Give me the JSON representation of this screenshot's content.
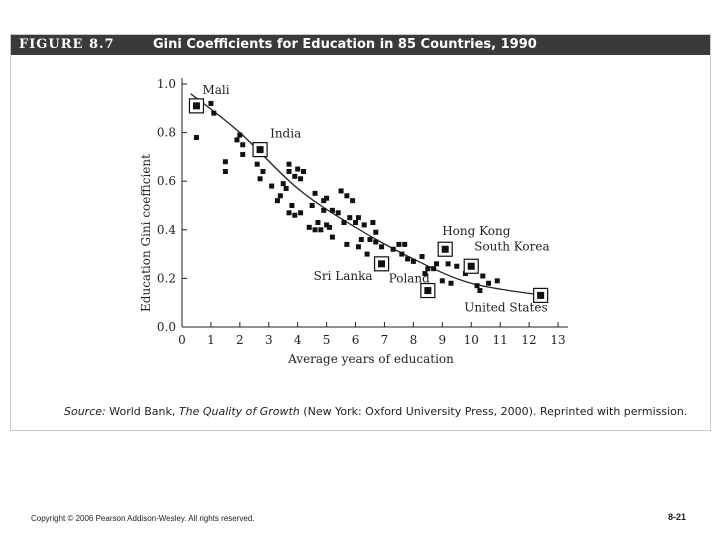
{
  "figure": {
    "label": "FIGURE 8.7",
    "title": "Gini Coefficients for Education in 85 Countries, 1990"
  },
  "chart_data": {
    "type": "scatter",
    "title": "Gini Coefficients for Education in 85 Countries, 1990",
    "xlabel": "Average years of education",
    "ylabel": "Education Gini coefficient",
    "xlim": [
      0,
      13
    ],
    "ylim": [
      0,
      1.0
    ],
    "x_ticks": [
      "0",
      "1",
      "2",
      "3",
      "4",
      "5",
      "6",
      "7",
      "8",
      "9",
      "10",
      "11",
      "12",
      "13"
    ],
    "y_ticks": [
      "0.0",
      "0.2",
      "0.4",
      "0.6",
      "0.8",
      "1.0"
    ],
    "grid": false,
    "trend_line": {
      "type": "curve",
      "points": [
        [
          0.3,
          0.96
        ],
        [
          2,
          0.8
        ],
        [
          4,
          0.57
        ],
        [
          6,
          0.41
        ],
        [
          8,
          0.28
        ],
        [
          10,
          0.18
        ],
        [
          12.5,
          0.13
        ]
      ]
    },
    "highlighted": [
      {
        "name": "Mali",
        "x": 0.5,
        "y": 0.91
      },
      {
        "name": "India",
        "x": 2.7,
        "y": 0.73
      },
      {
        "name": "Sri Lanka",
        "x": 6.9,
        "y": 0.26
      },
      {
        "name": "Poland",
        "x": 8.5,
        "y": 0.15
      },
      {
        "name": "Hong Kong",
        "x": 9.1,
        "y": 0.32
      },
      {
        "name": "South Korea",
        "x": 10.0,
        "y": 0.25
      },
      {
        "name": "United States",
        "x": 12.4,
        "y": 0.13
      }
    ],
    "points": [
      [
        0.5,
        0.78
      ],
      [
        1.0,
        0.92
      ],
      [
        1.1,
        0.88
      ],
      [
        1.5,
        0.68
      ],
      [
        1.5,
        0.64
      ],
      [
        1.9,
        0.77
      ],
      [
        2.0,
        0.79
      ],
      [
        2.1,
        0.71
      ],
      [
        2.1,
        0.75
      ],
      [
        2.6,
        0.67
      ],
      [
        2.7,
        0.61
      ],
      [
        2.8,
        0.64
      ],
      [
        3.1,
        0.58
      ],
      [
        3.3,
        0.52
      ],
      [
        3.4,
        0.54
      ],
      [
        3.5,
        0.59
      ],
      [
        3.6,
        0.57
      ],
      [
        3.7,
        0.64
      ],
      [
        3.7,
        0.67
      ],
      [
        3.7,
        0.47
      ],
      [
        3.8,
        0.5
      ],
      [
        3.9,
        0.46
      ],
      [
        3.9,
        0.62
      ],
      [
        4.0,
        0.65
      ],
      [
        4.1,
        0.47
      ],
      [
        4.1,
        0.61
      ],
      [
        4.2,
        0.64
      ],
      [
        4.4,
        0.41
      ],
      [
        4.5,
        0.5
      ],
      [
        4.6,
        0.55
      ],
      [
        4.6,
        0.4
      ],
      [
        4.7,
        0.43
      ],
      [
        4.8,
        0.4
      ],
      [
        4.9,
        0.52
      ],
      [
        4.9,
        0.48
      ],
      [
        5.0,
        0.53
      ],
      [
        5.0,
        0.42
      ],
      [
        5.1,
        0.41
      ],
      [
        5.2,
        0.48
      ],
      [
        5.2,
        0.37
      ],
      [
        5.4,
        0.47
      ],
      [
        5.5,
        0.56
      ],
      [
        5.6,
        0.43
      ],
      [
        5.7,
        0.34
      ],
      [
        5.7,
        0.54
      ],
      [
        5.8,
        0.45
      ],
      [
        5.9,
        0.52
      ],
      [
        6.0,
        0.43
      ],
      [
        6.1,
        0.33
      ],
      [
        6.1,
        0.45
      ],
      [
        6.2,
        0.36
      ],
      [
        6.3,
        0.42
      ],
      [
        6.4,
        0.3
      ],
      [
        6.5,
        0.36
      ],
      [
        6.6,
        0.43
      ],
      [
        6.7,
        0.35
      ],
      [
        6.7,
        0.39
      ],
      [
        6.9,
        0.33
      ],
      [
        7.3,
        0.32
      ],
      [
        7.5,
        0.34
      ],
      [
        7.6,
        0.3
      ],
      [
        7.7,
        0.34
      ],
      [
        7.8,
        0.28
      ],
      [
        8.0,
        0.27
      ],
      [
        8.3,
        0.29
      ],
      [
        8.4,
        0.22
      ],
      [
        8.5,
        0.24
      ],
      [
        8.7,
        0.24
      ],
      [
        8.8,
        0.26
      ],
      [
        9.0,
        0.19
      ],
      [
        9.2,
        0.26
      ],
      [
        9.3,
        0.18
      ],
      [
        9.5,
        0.25
      ],
      [
        9.8,
        0.22
      ],
      [
        10.2,
        0.17
      ],
      [
        10.3,
        0.15
      ],
      [
        10.4,
        0.21
      ],
      [
        10.6,
        0.18
      ],
      [
        10.9,
        0.19
      ]
    ]
  },
  "source": {
    "prefix": "Source:",
    "body1": " World Bank, ",
    "book": "The Quality of Growth",
    "body2": " (New York: Oxford University Press, 2000). Reprinted with permission."
  },
  "footer": {
    "copyright": "Copyright © 2006 Pearson Addison-Wesley. All rights reserved.",
    "slide_number": "8-21"
  }
}
